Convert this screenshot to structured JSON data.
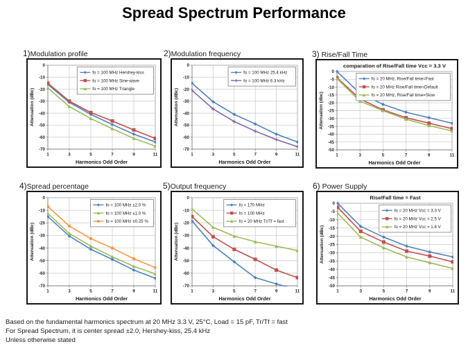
{
  "title": "Spread Spectrum Performance",
  "footer": {
    "lines": [
      "Based on the fundamental harmonics spectrum at 20 MHz 3.3 V, 25°C, Load = 15 pF, Tr/Tf = fast",
      "For Spread Spectrum, it is center spread ±2.0, Hershey-kiss, 25.4 kHz",
      "Unless otherwise stated"
    ]
  },
  "colors": {
    "blue": "#4F81BD",
    "red": "#C0504D",
    "green": "#9BBB59",
    "purple": "#8064A2",
    "orange": "#F79646"
  },
  "chart_data": [
    {
      "type": "line",
      "index_label": "1)",
      "label": "Modulation profile",
      "inner_title": "",
      "xlabel": "Harmonics Odd Order",
      "ylabel": "Attenuation (dBc)",
      "categories": [
        1,
        3,
        5,
        7,
        9,
        11
      ],
      "ylim": [
        0,
        -70
      ],
      "ytick_step": 10,
      "grid": true,
      "legend_position": "upper-right",
      "series": [
        {
          "name": "fo = 100 MHz  Hershey-kiss",
          "color": "#4F81BD",
          "marker": "diamond",
          "values": [
            -16,
            -31,
            -41,
            -49.5,
            -57.5,
            -64
          ]
        },
        {
          "name": "fo = 100 MHz  Sine-wave",
          "color": "#C0504D",
          "marker": "square",
          "values": [
            -15,
            -30,
            -39.5,
            -46.5,
            -54,
            -61
          ]
        },
        {
          "name": "fo = 100 MHz  Triangle",
          "color": "#9BBB59",
          "marker": "triangle",
          "values": [
            -19,
            -34.5,
            -44.5,
            -53,
            -61,
            -67.5
          ]
        }
      ]
    },
    {
      "type": "line",
      "index_label": "2)",
      "label": "Modulation frequency",
      "inner_title": "",
      "xlabel": "Harmonics Odd Order",
      "ylabel": "Attenuation (dBc)",
      "categories": [
        1,
        3,
        5,
        7,
        9,
        11
      ],
      "ylim": [
        0,
        -70
      ],
      "ytick_step": 10,
      "grid": true,
      "legend_position": "upper-right",
      "series": [
        {
          "name": "fo = 100 MHz  25.4 kHz",
          "color": "#4F81BD",
          "marker": "diamond",
          "values": [
            -15,
            -30.5,
            -41,
            -49,
            -57.5,
            -64
          ]
        },
        {
          "name": "fo = 100 MHz  6.3 kHz",
          "color": "#8064A2",
          "marker": "plus",
          "values": [
            -21,
            -36.5,
            -47,
            -55,
            -62,
            -68
          ]
        }
      ]
    },
    {
      "type": "line",
      "index_label": "3)",
      "label": " Rise/Fall Time",
      "inner_title": "comparation of Rise/Fall time  Vcc = 3.3 V",
      "xlabel": "Harmonics Odd Order",
      "ylabel": "Attenuation (dbc)",
      "categories": [
        1,
        3,
        5,
        7,
        9,
        11
      ],
      "ylim": [
        0,
        -50
      ],
      "ytick_step": 5,
      "grid": true,
      "legend_position": "upper-right",
      "series": [
        {
          "name": "fo = 20 MHz, Rise/Fall time=Fast",
          "color": "#4F81BD",
          "marker": "diamond",
          "values": [
            0,
            -14,
            -21,
            -26,
            -29.5,
            -33
          ]
        },
        {
          "name": "fo = 20 MHz Rise/Fall time=Default",
          "color": "#C0504D",
          "marker": "square",
          "values": [
            -4,
            -17.5,
            -24.5,
            -29.5,
            -33,
            -36.5
          ]
        },
        {
          "name": "fo = 20 MHz, Rise/Fall time=Slow",
          "color": "#9BBB59",
          "marker": "triangle",
          "values": [
            -4.5,
            -19,
            -25,
            -30.5,
            -34.5,
            -38
          ]
        }
      ]
    },
    {
      "type": "line",
      "index_label": "4)",
      "label": "Spread percentage",
      "inner_title": "",
      "xlabel": "Harmonics Odd Order",
      "ylabel": "Attenuation (dBc)",
      "categories": [
        1,
        3,
        5,
        7,
        9,
        11
      ],
      "ylim": [
        0,
        -70
      ],
      "ytick_step": 10,
      "grid": true,
      "legend_position": "upper-right",
      "series": [
        {
          "name": "fo = 100 MHz ±2.0 %",
          "color": "#4F81BD",
          "marker": "diamond",
          "values": [
            -15,
            -30.5,
            -41,
            -49,
            -57.5,
            -64
          ]
        },
        {
          "name": "fo = 100 MHz ±1.0 %",
          "color": "#9BBB59",
          "marker": "triangle",
          "values": [
            -12.5,
            -28.5,
            -38.5,
            -47,
            -54.5,
            -60.5
          ]
        },
        {
          "name": "fo = 100 MHz ±0.25 %",
          "color": "#F79646",
          "marker": "circle",
          "values": [
            -7,
            -22.5,
            -32.5,
            -40,
            -48.5,
            -55.5
          ]
        }
      ]
    },
    {
      "type": "line",
      "index_label": "5)",
      "label": "Output frequency",
      "inner_title": "",
      "xlabel": "Harmonics Odd Order",
      "ylabel": "Attenuation (dBc)",
      "categories": [
        1,
        3,
        5,
        7,
        9,
        11
      ],
      "ylim": [
        0,
        -70
      ],
      "ytick_step": 10,
      "grid": true,
      "legend_position": "upper-right",
      "series": [
        {
          "name": "fo = 170 MHz",
          "color": "#4F81BD",
          "marker": "diamond",
          "values": [
            -18.5,
            -38,
            -51,
            -63.5,
            -68.5,
            -73
          ]
        },
        {
          "name": "fo = 100 MHz",
          "color": "#C0504D",
          "marker": "square",
          "values": [
            -15,
            -31,
            -41,
            -49,
            -57.5,
            -63.5
          ]
        },
        {
          "name": "fo = 20 MHz Tr/Tf = fast",
          "color": "#9BBB59",
          "marker": "triangle",
          "values": [
            -9,
            -23.5,
            -30.5,
            -35,
            -38.5,
            -42
          ]
        }
      ]
    },
    {
      "type": "line",
      "index_label": "6)",
      "label": " Power Supply",
      "inner_title": "Rise/Fall time = Fast",
      "xlabel": "Harmonics Odd Order",
      "ylabel": "Attenuation (dBc)",
      "categories": [
        1,
        3,
        5,
        7,
        9,
        11
      ],
      "ylim": [
        0,
        -50
      ],
      "ytick_step": 5,
      "grid": true,
      "legend_position": "upper-right",
      "series": [
        {
          "name": "fo = 20 MHz  Vcc = 3.3 V",
          "color": "#4F81BD",
          "marker": "diamond",
          "values": [
            0,
            -14,
            -20.5,
            -26,
            -29.5,
            -32.5
          ]
        },
        {
          "name": "fo = 20 MHz  Vcc = 2.5 V",
          "color": "#C0504D",
          "marker": "square",
          "values": [
            -2.5,
            -17,
            -23.5,
            -29,
            -32,
            -35.5
          ]
        },
        {
          "name": "fo = 20 MHz  Vcc = 1.8 V",
          "color": "#9BBB59",
          "marker": "triangle",
          "values": [
            -6,
            -20.5,
            -27,
            -32.5,
            -36,
            -39.5
          ]
        }
      ]
    }
  ]
}
